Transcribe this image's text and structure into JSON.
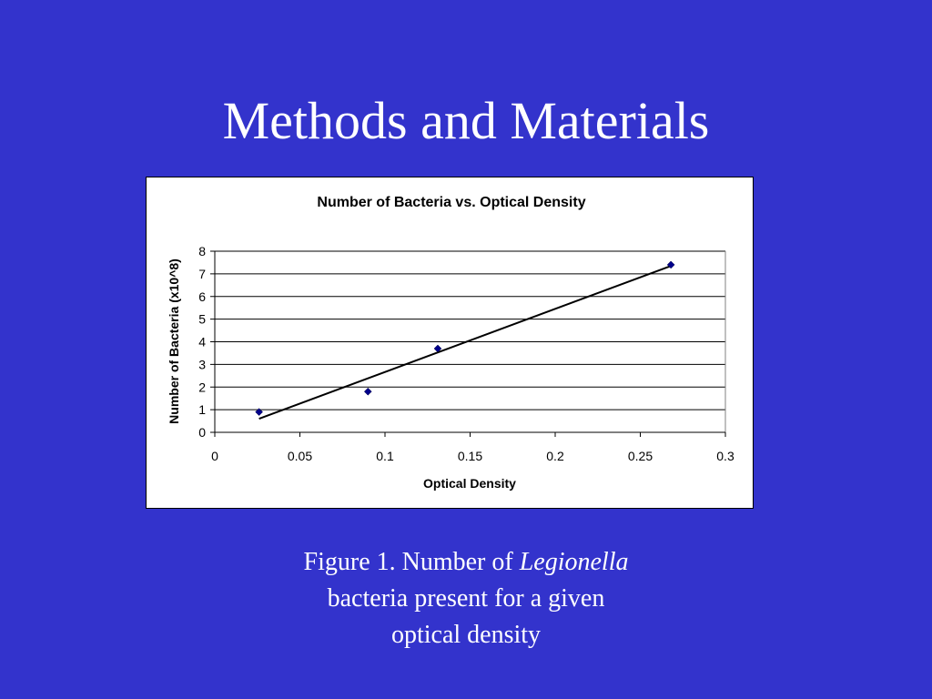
{
  "slide": {
    "title": "Methods and Materials",
    "background_color": "#3333cc",
    "caption": {
      "prefix": "Figure 1.  Number of ",
      "italic": "Legionella",
      "line2": "bacteria present for a given",
      "line3": "optical density"
    }
  },
  "chart_data": {
    "type": "scatter",
    "title": "Number of Bacteria vs. Optical Density",
    "xlabel": "Optical Density",
    "ylabel": "Number of Bacteria (x10^8)",
    "xlim": [
      0,
      0.3
    ],
    "ylim": [
      0,
      8
    ],
    "x_ticks": [
      "0",
      "0.05",
      "0.1",
      "0.15",
      "0.2",
      "0.25",
      "0.3"
    ],
    "y_ticks": [
      "0",
      "1",
      "2",
      "3",
      "4",
      "5",
      "6",
      "7",
      "8"
    ],
    "grid": "horizontal",
    "series": [
      {
        "x": [
          0.026,
          0.09,
          0.131,
          0.268
        ],
        "y": [
          0.9,
          1.8,
          3.7,
          7.4
        ],
        "marker_color": "#00008b"
      }
    ],
    "trendline": {
      "type": "linear",
      "x": [
        0.026,
        0.268
      ],
      "y": [
        0.6,
        7.35
      ],
      "color": "#000000"
    }
  }
}
